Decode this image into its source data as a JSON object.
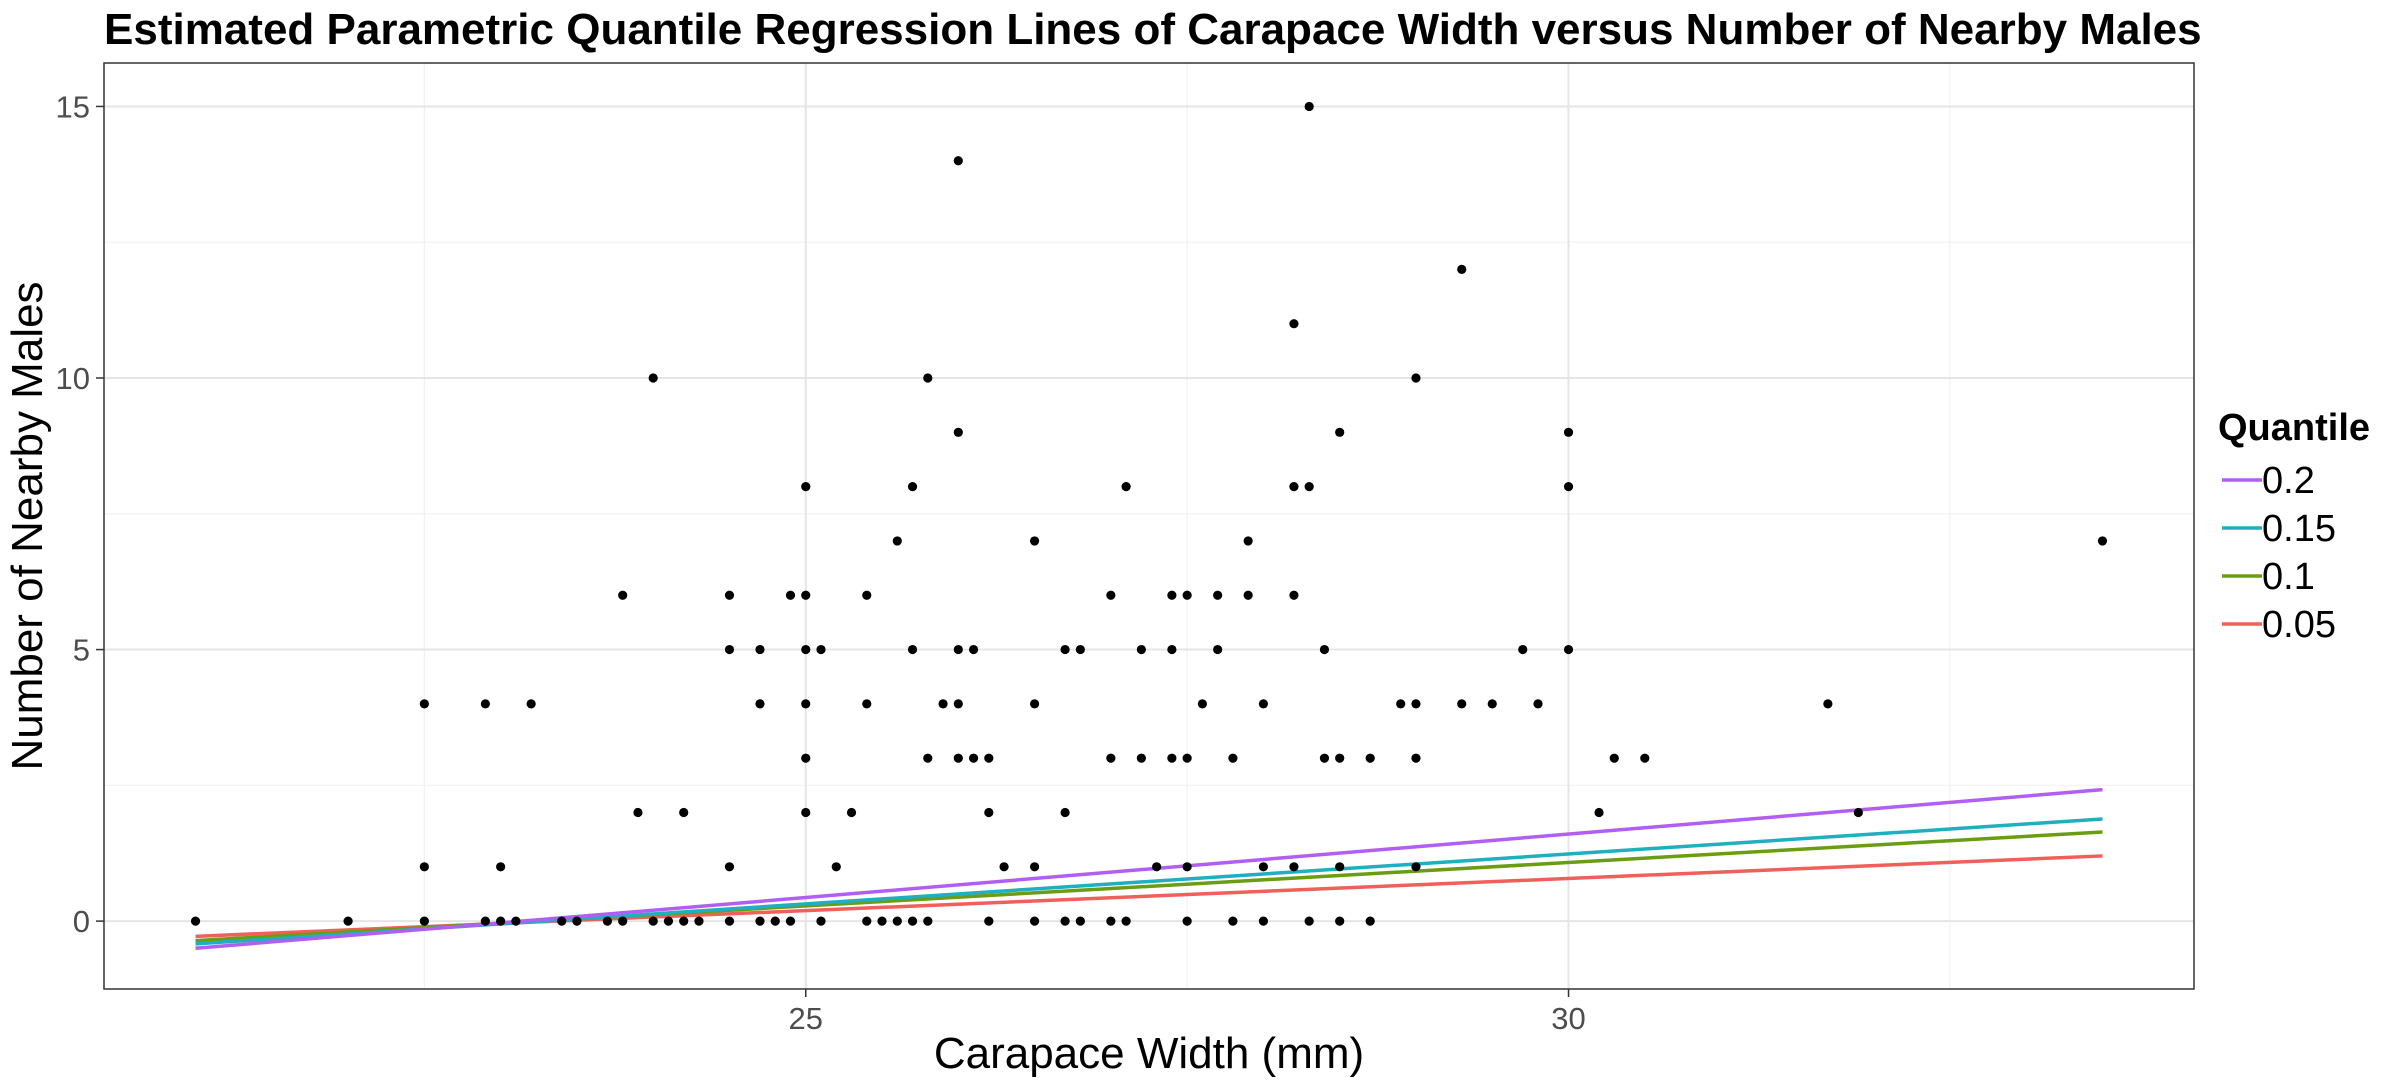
{
  "chart_data": {
    "type": "scatter",
    "title": "Estimated Parametric Quantile Regression Lines of Carapace Width versus Number of Nearby Males",
    "xlabel": "Carapace Width (mm)",
    "ylabel": "Number of Nearby Males",
    "xlim": [
      20.4,
      34.1
    ],
    "ylim": [
      -1.25,
      15.8
    ],
    "x_ticks": [
      25,
      30
    ],
    "y_ticks": [
      0,
      5,
      10,
      15
    ],
    "x_tick_labels": [
      "25",
      "30"
    ],
    "y_tick_labels": [
      "0",
      "5",
      "10",
      "15"
    ],
    "grid": true,
    "legend": {
      "title": "Quantile",
      "position": "right",
      "entries": [
        {
          "label": "0.2",
          "color": "#B15FF2"
        },
        {
          "label": "0.15",
          "color": "#1FAFBE"
        },
        {
          "label": "0.1",
          "color": "#6A9D12"
        },
        {
          "label": "0.05",
          "color": "#F0605A"
        }
      ]
    },
    "points": [
      [
        21.0,
        0
      ],
      [
        22.0,
        0
      ],
      [
        22.5,
        0
      ],
      [
        22.5,
        1
      ],
      [
        22.5,
        4
      ],
      [
        22.9,
        0
      ],
      [
        22.9,
        4
      ],
      [
        23.0,
        0
      ],
      [
        23.0,
        1
      ],
      [
        23.1,
        0
      ],
      [
        23.2,
        4
      ],
      [
        23.4,
        0
      ],
      [
        23.5,
        0
      ],
      [
        23.7,
        0
      ],
      [
        23.8,
        0
      ],
      [
        23.8,
        6
      ],
      [
        23.9,
        2
      ],
      [
        24.0,
        0
      ],
      [
        24.0,
        10
      ],
      [
        24.1,
        0
      ],
      [
        24.2,
        0
      ],
      [
        24.2,
        2
      ],
      [
        24.3,
        0
      ],
      [
        24.5,
        0
      ],
      [
        24.5,
        1
      ],
      [
        24.5,
        5
      ],
      [
        24.5,
        6
      ],
      [
        24.7,
        0
      ],
      [
        24.7,
        4
      ],
      [
        24.7,
        5
      ],
      [
        24.8,
        0
      ],
      [
        24.9,
        0
      ],
      [
        24.9,
        6
      ],
      [
        25.0,
        2
      ],
      [
        25.0,
        3
      ],
      [
        25.0,
        4
      ],
      [
        25.0,
        5
      ],
      [
        25.0,
        6
      ],
      [
        25.0,
        8
      ],
      [
        25.1,
        0
      ],
      [
        25.1,
        5
      ],
      [
        25.2,
        1
      ],
      [
        25.3,
        2
      ],
      [
        25.4,
        0
      ],
      [
        25.4,
        4
      ],
      [
        25.4,
        6
      ],
      [
        25.5,
        0
      ],
      [
        25.6,
        0
      ],
      [
        25.6,
        7
      ],
      [
        25.7,
        0
      ],
      [
        25.7,
        5
      ],
      [
        25.7,
        8
      ],
      [
        25.8,
        0
      ],
      [
        25.8,
        3
      ],
      [
        25.8,
        10
      ],
      [
        25.9,
        4
      ],
      [
        26.0,
        3
      ],
      [
        26.0,
        4
      ],
      [
        26.0,
        5
      ],
      [
        26.0,
        9
      ],
      [
        26.0,
        14
      ],
      [
        26.1,
        3
      ],
      [
        26.1,
        5
      ],
      [
        26.2,
        0
      ],
      [
        26.2,
        2
      ],
      [
        26.2,
        3
      ],
      [
        26.3,
        1
      ],
      [
        26.5,
        0
      ],
      [
        26.5,
        1
      ],
      [
        26.5,
        4
      ],
      [
        26.5,
        7
      ],
      [
        26.7,
        0
      ],
      [
        26.7,
        2
      ],
      [
        26.7,
        5
      ],
      [
        26.8,
        0
      ],
      [
        26.8,
        5
      ],
      [
        27.0,
        0
      ],
      [
        27.0,
        3
      ],
      [
        27.0,
        6
      ],
      [
        27.1,
        0
      ],
      [
        27.1,
        8
      ],
      [
        27.2,
        3
      ],
      [
        27.2,
        5
      ],
      [
        27.3,
        1
      ],
      [
        27.4,
        3
      ],
      [
        27.4,
        5
      ],
      [
        27.4,
        6
      ],
      [
        27.5,
        0
      ],
      [
        27.5,
        1
      ],
      [
        27.5,
        3
      ],
      [
        27.5,
        6
      ],
      [
        27.6,
        4
      ],
      [
        27.7,
        5
      ],
      [
        27.7,
        6
      ],
      [
        27.8,
        0
      ],
      [
        27.8,
        3
      ],
      [
        27.9,
        6
      ],
      [
        27.9,
        7
      ],
      [
        28.0,
        0
      ],
      [
        28.0,
        1
      ],
      [
        28.0,
        4
      ],
      [
        28.2,
        1
      ],
      [
        28.2,
        6
      ],
      [
        28.2,
        8
      ],
      [
        28.2,
        11
      ],
      [
        28.3,
        0
      ],
      [
        28.3,
        8
      ],
      [
        28.3,
        15
      ],
      [
        28.4,
        3
      ],
      [
        28.4,
        5
      ],
      [
        28.5,
        0
      ],
      [
        28.5,
        1
      ],
      [
        28.5,
        3
      ],
      [
        28.5,
        9
      ],
      [
        28.7,
        0
      ],
      [
        28.7,
        3
      ],
      [
        28.9,
        4
      ],
      [
        29.0,
        1
      ],
      [
        29.0,
        3
      ],
      [
        29.0,
        4
      ],
      [
        29.0,
        10
      ],
      [
        29.3,
        4
      ],
      [
        29.3,
        12
      ],
      [
        29.5,
        4
      ],
      [
        29.7,
        5
      ],
      [
        29.8,
        4
      ],
      [
        30.0,
        5
      ],
      [
        30.0,
        8
      ],
      [
        30.0,
        9
      ],
      [
        30.2,
        2
      ],
      [
        30.3,
        3
      ],
      [
        30.5,
        3
      ],
      [
        31.7,
        4
      ],
      [
        31.9,
        2
      ],
      [
        33.5,
        7
      ]
    ],
    "lines": [
      {
        "name": "0.2",
        "color": "#B15FF2",
        "x": [
          21.0,
          33.5
        ],
        "y": [
          -0.5,
          2.42
        ]
      },
      {
        "name": "0.15",
        "color": "#1FAFBE",
        "x": [
          21.0,
          33.5
        ],
        "y": [
          -0.42,
          1.88
        ]
      },
      {
        "name": "0.1",
        "color": "#6A9D12",
        "x": [
          21.0,
          33.5
        ],
        "y": [
          -0.36,
          1.64
        ]
      },
      {
        "name": "0.05",
        "color": "#F0605A",
        "x": [
          21.0,
          33.5
        ],
        "y": [
          -0.28,
          1.2
        ]
      }
    ]
  }
}
